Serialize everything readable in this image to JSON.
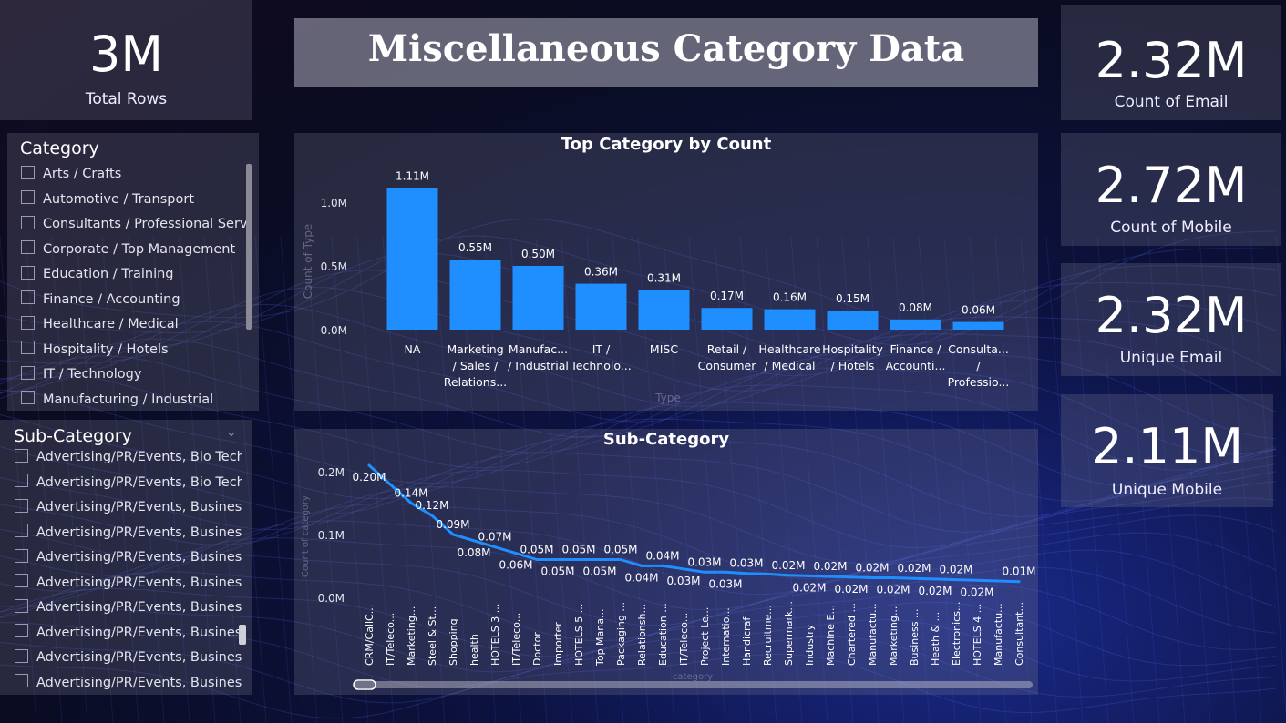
{
  "title": "Miscellaneous Category Data",
  "kpis": {
    "total_rows": {
      "value": "3M",
      "label": "Total Rows"
    },
    "count_email": {
      "value": "2.32M",
      "label": "Count of Email"
    },
    "count_mobile": {
      "value": "2.72M",
      "label": "Count of Mobile"
    },
    "unique_email": {
      "value": "2.32M",
      "label": "Unique Email"
    },
    "unique_mobile": {
      "value": "2.11M",
      "label": "Unique Mobile"
    }
  },
  "category_slicer": {
    "title": "Category",
    "items": [
      "Arts / Crafts",
      "Automotive / Transport",
      "Consultants / Professional Services",
      "Corporate / Top Management",
      "Education / Training",
      "Finance / Accounting",
      "Healthcare / Medical",
      "Hospitality / Hotels",
      "IT / Technology",
      "Manufacturing / Industrial"
    ]
  },
  "subcategory_slicer": {
    "title": "Sub-Category",
    "items": [
      "Advertising/PR/Events, Bio Tech/R...",
      "Advertising/PR/Events, Bio Tech/R...",
      "Advertising/PR/Events, Business ...",
      "Advertising/PR/Events, Business ...",
      "Advertising/PR/Events, Business ...",
      "Advertising/PR/Events, Business ...",
      "Advertising/PR/Events, Business ...",
      "Advertising/PR/Events, Business ...",
      "Advertising/PR/Events, Business ...",
      "Advertising/PR/Events, Business ..."
    ]
  },
  "chart_data": [
    {
      "type": "bar",
      "title": "Top Category by Count",
      "xlabel": "Type",
      "ylabel": "Count of Type",
      "ylim": [
        0,
        1.2
      ],
      "yticks": [
        "0.0M",
        "0.5M",
        "1.0M"
      ],
      "categories": [
        [
          "NA"
        ],
        [
          "Marketing",
          "/ Sales /",
          "Relations..."
        ],
        [
          "Manufac...",
          "/ Industrial"
        ],
        [
          "IT /",
          "Technolo..."
        ],
        [
          "MISC"
        ],
        [
          "Retail /",
          "Consumer"
        ],
        [
          "Healthcare",
          "/ Medical"
        ],
        [
          "Hospitality",
          "/ Hotels"
        ],
        [
          "Finance /",
          "Accounti..."
        ],
        [
          "Consulta...",
          "/",
          "Professio..."
        ]
      ],
      "values": [
        1.11,
        0.55,
        0.5,
        0.36,
        0.31,
        0.17,
        0.16,
        0.15,
        0.08,
        0.06
      ],
      "labels": [
        "1.11M",
        "0.55M",
        "0.50M",
        "0.36M",
        "0.31M",
        "0.17M",
        "0.16M",
        "0.15M",
        "0.08M",
        "0.06M"
      ],
      "color": "#1f8fff"
    },
    {
      "type": "line",
      "title": "Sub-Category",
      "xlabel": "category",
      "ylabel": "Count of category",
      "ylim": [
        0,
        0.2
      ],
      "yticks": [
        "0.0M",
        "0.1M",
        "0.2M"
      ],
      "categories": [
        "CRM/CallC...",
        "IT/Teleco...",
        "Marketing...",
        "Steel & St...",
        "Shopping",
        "health",
        "HOTELS 3 ...",
        "IT/Teleco...",
        "Doctor",
        "Importer",
        "HOTELS 5 ...",
        "Top Mana...",
        "Packaging ...",
        "Relationsh...",
        "Education ...",
        "IT/Teleco...",
        "Project Le...",
        "Internatio...",
        "Handicraf",
        "Recruitme...",
        "Supermark...",
        "Industry",
        "Machine E...",
        "Chartered ...",
        "Manufactu...",
        "Marketing...",
        "Business ...",
        "Heath & ...",
        "Electronics...",
        "HOTELS 4 ...",
        "Manufactu...",
        "Consultant..."
      ],
      "values": [
        0.2,
        0.17,
        0.14,
        0.12,
        0.09,
        0.08,
        0.07,
        0.06,
        0.05,
        0.05,
        0.05,
        0.05,
        0.05,
        0.04,
        0.04,
        0.035,
        0.03,
        0.03,
        0.028,
        0.027,
        0.025,
        0.024,
        0.023,
        0.022,
        0.021,
        0.021,
        0.02,
        0.019,
        0.018,
        0.017,
        0.016,
        0.015
      ],
      "point_labels": [
        {
          "i": 0,
          "text": "0.20M",
          "pos": "below"
        },
        {
          "i": 2,
          "text": "0.14M",
          "pos": "above"
        },
        {
          "i": 3,
          "text": "0.12M",
          "pos": "above"
        },
        {
          "i": 4,
          "text": "0.09M",
          "pos": "above"
        },
        {
          "i": 5,
          "text": "0.08M",
          "pos": "below"
        },
        {
          "i": 6,
          "text": "0.07M",
          "pos": "above"
        },
        {
          "i": 7,
          "text": "0.06M",
          "pos": "below"
        },
        {
          "i": 8,
          "text": "0.05M",
          "pos": "above"
        },
        {
          "i": 9,
          "text": "0.05M",
          "pos": "below"
        },
        {
          "i": 10,
          "text": "0.05M",
          "pos": "above"
        },
        {
          "i": 11,
          "text": "0.05M",
          "pos": "below"
        },
        {
          "i": 12,
          "text": "0.05M",
          "pos": "above"
        },
        {
          "i": 13,
          "text": "0.04M",
          "pos": "below"
        },
        {
          "i": 14,
          "text": "0.04M",
          "pos": "above"
        },
        {
          "i": 15,
          "text": "0.03M",
          "pos": "below"
        },
        {
          "i": 16,
          "text": "0.03M",
          "pos": "above"
        },
        {
          "i": 17,
          "text": "0.03M",
          "pos": "below"
        },
        {
          "i": 18,
          "text": "0.03M",
          "pos": "above"
        },
        {
          "i": 20,
          "text": "0.02M",
          "pos": "above"
        },
        {
          "i": 21,
          "text": "0.02M",
          "pos": "below"
        },
        {
          "i": 22,
          "text": "0.02M",
          "pos": "above"
        },
        {
          "i": 23,
          "text": "0.02M",
          "pos": "below"
        },
        {
          "i": 24,
          "text": "0.02M",
          "pos": "above"
        },
        {
          "i": 25,
          "text": "0.02M",
          "pos": "below"
        },
        {
          "i": 26,
          "text": "0.02M",
          "pos": "above"
        },
        {
          "i": 27,
          "text": "0.02M",
          "pos": "below"
        },
        {
          "i": 28,
          "text": "0.02M",
          "pos": "above"
        },
        {
          "i": 29,
          "text": "0.02M",
          "pos": "below"
        },
        {
          "i": 31,
          "text": "0.01M",
          "pos": "above"
        }
      ],
      "color": "#1f8fff"
    }
  ]
}
